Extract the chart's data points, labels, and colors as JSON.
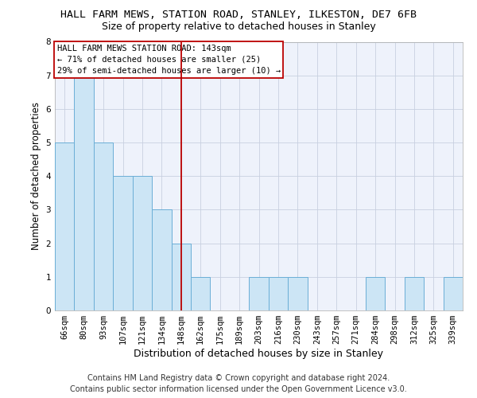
{
  "title1": "HALL FARM MEWS, STATION ROAD, STANLEY, ILKESTON, DE7 6FB",
  "title2": "Size of property relative to detached houses in Stanley",
  "xlabel": "Distribution of detached houses by size in Stanley",
  "ylabel": "Number of detached properties",
  "categories": [
    "66sqm",
    "80sqm",
    "93sqm",
    "107sqm",
    "121sqm",
    "134sqm",
    "148sqm",
    "162sqm",
    "175sqm",
    "189sqm",
    "203sqm",
    "216sqm",
    "230sqm",
    "243sqm",
    "257sqm",
    "271sqm",
    "284sqm",
    "298sqm",
    "312sqm",
    "325sqm",
    "339sqm"
  ],
  "values": [
    5,
    7,
    5,
    4,
    4,
    3,
    2,
    1,
    0,
    0,
    1,
    1,
    1,
    0,
    0,
    0,
    1,
    0,
    1,
    0,
    1
  ],
  "bar_color": "#cce5f5",
  "bar_edge_color": "#6baed6",
  "ref_line_index": 6,
  "ref_line_color": "#bb0000",
  "ylim": [
    0,
    8
  ],
  "yticks": [
    0,
    1,
    2,
    3,
    4,
    5,
    6,
    7,
    8
  ],
  "annotation_line1": "HALL FARM MEWS STATION ROAD: 143sqm",
  "annotation_line2": "← 71% of detached houses are smaller (25)",
  "annotation_line3": "29% of semi-detached houses are larger (10) →",
  "annotation_box_color": "#bb0000",
  "footer1": "Contains HM Land Registry data © Crown copyright and database right 2024.",
  "footer2": "Contains public sector information licensed under the Open Government Licence v3.0.",
  "bg_color": "#eef2fb",
  "grid_color": "#c8d0e0",
  "title1_fontsize": 9.5,
  "title2_fontsize": 9,
  "ylabel_fontsize": 8.5,
  "xlabel_fontsize": 9,
  "tick_fontsize": 7.5,
  "annot_fontsize": 7.5,
  "footer_fontsize": 7
}
